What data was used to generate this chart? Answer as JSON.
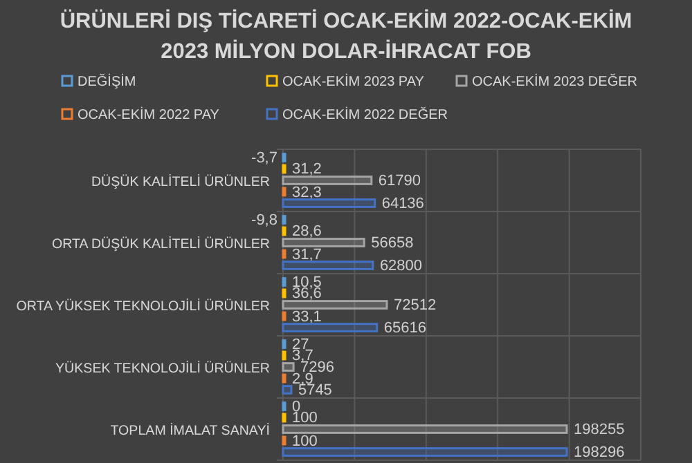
{
  "chart_data": {
    "type": "bar",
    "orientation": "horizontal",
    "title": "ÜRÜNLERİ DIŞ TİCARETİ OCAK-EKİM 2022-OCAK-EKİM 2023 MİLYON DOLAR-İHRACAT FOB",
    "categories": [
      "DÜŞÜK KALİTELİ ÜRÜNLER",
      "ORTA DÜŞÜK KALİTELİ ÜRÜNLER",
      "ORTA YÜKSEK TEKNOLOJİLİ ÜRÜNLER",
      "YÜKSEK TEKNOLOJİLİ ÜRÜNLER",
      "TOPLAM İMALAT SANAYİ"
    ],
    "series": [
      {
        "name": "DEĞİŞİM",
        "color": "#5b9bd5",
        "values": [
          -3.7,
          -9.8,
          10.5,
          27,
          0
        ],
        "value_labels": [
          "-3,7",
          "-9,8",
          "10,5",
          "27",
          "0"
        ]
      },
      {
        "name": "OCAK-EKİM 2023 PAY",
        "color": "#ffc000",
        "values": [
          31.2,
          28.6,
          36.6,
          3.7,
          100
        ],
        "value_labels": [
          "31,2",
          "28,6",
          "36,6",
          "3,7",
          "100"
        ]
      },
      {
        "name": "OCAK-EKİM 2023 DEĞER",
        "color": "#a5a5a5",
        "values": [
          61790,
          56658,
          72512,
          7296,
          198255
        ],
        "value_labels": [
          "61790",
          "56658",
          "72512",
          "7296",
          "198255"
        ]
      },
      {
        "name": "OCAK-EKİM 2022 PAY",
        "color": "#ed7d31",
        "values": [
          32.3,
          31.7,
          33.1,
          2.9,
          100
        ],
        "value_labels": [
          "32,3",
          "31,7",
          "33,1",
          "2,9",
          "100"
        ]
      },
      {
        "name": "OCAK-EKİM 2022 DEĞER",
        "color": "#4472c4",
        "values": [
          64136,
          62800,
          65616,
          5745,
          198296
        ],
        "value_labels": [
          "64136",
          "62800",
          "65616",
          "5745",
          "198296"
        ]
      }
    ],
    "xlim": [
      -500,
      250000
    ],
    "xticks": [
      {
        "value": 0,
        "label": null
      },
      {
        "value": 50000,
        "label": null
      },
      {
        "value": 100000,
        "label": null
      },
      {
        "value": 150000,
        "label": null
      },
      {
        "value": 200000,
        "label": null
      },
      {
        "value": 250000,
        "label": null
      }
    ],
    "tick_labels": "y",
    "grid": true,
    "legend": "top"
  }
}
